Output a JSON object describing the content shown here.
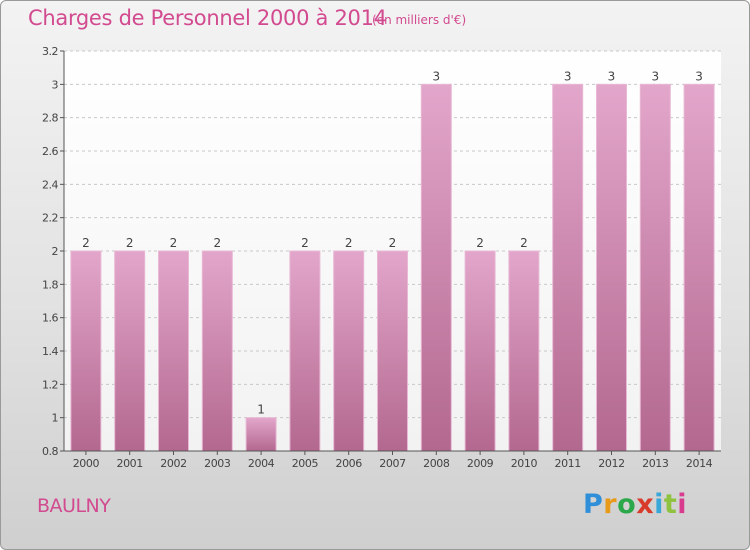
{
  "header": {
    "title": "Charges de Personnel 2000 à 2014",
    "subtitle": "(en milliers d'€)"
  },
  "footer": {
    "commune": "BAULNY",
    "brand": "Proxiti",
    "brand_colors": [
      "#2f8fd8",
      "#e89a1b",
      "#2aa84a",
      "#d93b2b",
      "#3aa7d9",
      "#8fc23f",
      "#d93b8f"
    ]
  },
  "chart_data": {
    "type": "bar",
    "categories": [
      "2000",
      "2001",
      "2002",
      "2003",
      "2004",
      "2005",
      "2006",
      "2007",
      "2008",
      "2009",
      "2010",
      "2011",
      "2012",
      "2013",
      "2014"
    ],
    "values": [
      2,
      2,
      2,
      2,
      1,
      2,
      2,
      2,
      3,
      2,
      2,
      3,
      3,
      3,
      3
    ],
    "data_labels": [
      "2",
      "2",
      "2",
      "2",
      "1",
      "2",
      "2",
      "2",
      "3",
      "2",
      "2",
      "3",
      "3",
      "3",
      "3"
    ],
    "title": "Charges de Personnel 2000 à 2014",
    "subtitle": "(en milliers d'€)",
    "xlabel": "",
    "ylabel": "",
    "ylim": [
      0.8,
      3.2
    ],
    "yticks": [
      0.8,
      1,
      1.2,
      1.4,
      1.6,
      1.8,
      2,
      2.2,
      2.4,
      2.6,
      2.8,
      3,
      3.2
    ],
    "ytick_labels": [
      "0.8",
      "1",
      "1.2",
      "1.4",
      "1.6",
      "1.8",
      "2",
      "2.2",
      "2.4",
      "2.6",
      "2.8",
      "3",
      "3.2"
    ],
    "grid": "horizontal-dashed",
    "bar_color_top": "#e3a6cb",
    "bar_color_bottom": "#b3688f",
    "label_color": "#444444"
  }
}
